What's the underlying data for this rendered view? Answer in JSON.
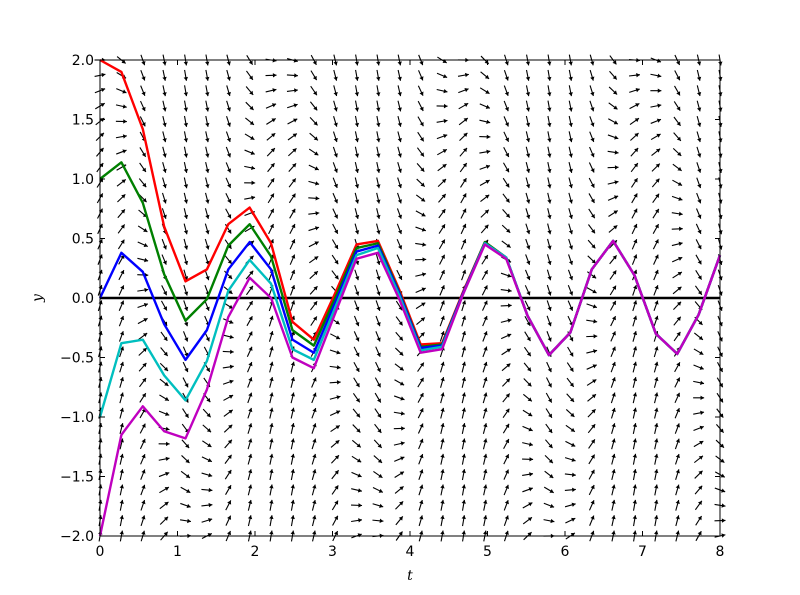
{
  "chart_data": {
    "type": "line",
    "title": "",
    "xlabel": "t",
    "ylabel": "y",
    "xlim": [
      0,
      8
    ],
    "ylim": [
      -2,
      2
    ],
    "xticks": [
      "0",
      "1",
      "2",
      "3",
      "4",
      "5",
      "6",
      "7",
      "8"
    ],
    "yticks": [
      "−2.0",
      "−1.5",
      "−1.0",
      "−0.5",
      "0.0",
      "0.5",
      "1.0",
      "1.5",
      "2.0"
    ],
    "grid": false,
    "legend": false,
    "reference_line": {
      "y": 0,
      "color": "#000000"
    },
    "direction_field": {
      "arrow_color": "#000000",
      "columns": 30,
      "rows": 32
    },
    "x": [
      0,
      0.276,
      0.552,
      0.828,
      1.103,
      1.379,
      1.655,
      1.931,
      2.207,
      2.483,
      2.759,
      3.034,
      3.31,
      3.586,
      3.862,
      4.138,
      4.414,
      4.69,
      4.966,
      5.241,
      5.517,
      5.793,
      6.069,
      6.345,
      6.621,
      6.897,
      7.172,
      7.448,
      7.724,
      8.0
    ],
    "series": [
      {
        "color": "#ff0000",
        "values": [
          2.0,
          1.9,
          1.42,
          0.6,
          0.14,
          0.24,
          0.62,
          0.76,
          0.46,
          -0.2,
          -0.35,
          0.04,
          0.45,
          0.48,
          0.07,
          -0.39,
          -0.38,
          0.06,
          0.47,
          0.34,
          -0.15,
          -0.48,
          -0.29,
          0.24,
          0.48,
          0.19,
          -0.3,
          -0.47,
          -0.14,
          0.36
        ]
      },
      {
        "color": "#008000",
        "values": [
          1.0,
          1.14,
          0.8,
          0.2,
          -0.19,
          -0.01,
          0.44,
          0.62,
          0.35,
          -0.27,
          -0.4,
          0.0,
          0.42,
          0.46,
          0.05,
          -0.41,
          -0.39,
          0.05,
          0.47,
          0.34,
          -0.15,
          -0.48,
          -0.29,
          0.24,
          0.48,
          0.19,
          -0.3,
          -0.47,
          -0.14,
          0.36
        ]
      },
      {
        "color": "#0000ff",
        "values": [
          0.0,
          0.38,
          0.22,
          -0.22,
          -0.52,
          -0.27,
          0.24,
          0.47,
          0.24,
          -0.35,
          -0.46,
          -0.04,
          0.39,
          0.44,
          0.04,
          -0.42,
          -0.4,
          0.05,
          0.46,
          0.34,
          -0.15,
          -0.48,
          -0.29,
          0.24,
          0.48,
          0.19,
          -0.3,
          -0.47,
          -0.14,
          0.36
        ]
      },
      {
        "color": "#00bfbf",
        "values": [
          -1.0,
          -0.38,
          -0.35,
          -0.65,
          -0.86,
          -0.53,
          0.06,
          0.32,
          0.12,
          -0.43,
          -0.52,
          -0.08,
          0.36,
          0.42,
          0.02,
          -0.44,
          -0.41,
          0.04,
          0.46,
          0.34,
          -0.15,
          -0.48,
          -0.29,
          0.24,
          0.48,
          0.19,
          -0.3,
          -0.47,
          -0.14,
          0.36
        ]
      },
      {
        "color": "#bf00bf",
        "values": [
          -2.0,
          -1.15,
          -0.91,
          -1.12,
          -1.18,
          -0.77,
          -0.16,
          0.17,
          0.0,
          -0.5,
          -0.59,
          -0.13,
          0.33,
          0.38,
          -0.01,
          -0.46,
          -0.43,
          0.04,
          0.45,
          0.33,
          -0.15,
          -0.48,
          -0.29,
          0.24,
          0.48,
          0.19,
          -0.3,
          -0.47,
          -0.14,
          0.36
        ]
      }
    ]
  }
}
